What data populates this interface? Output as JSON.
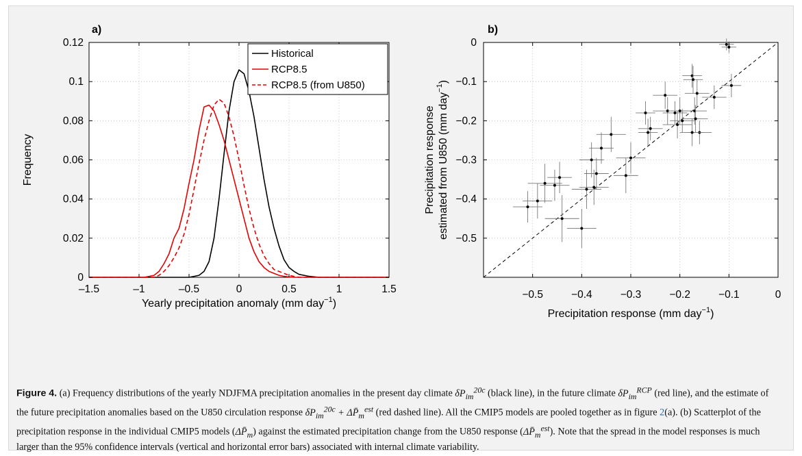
{
  "chart_data": [
    {
      "type": "line",
      "panel_label": "a)",
      "xlabel": "Yearly precipitation anomaly (mm day",
      "xlabel_sup": "−1",
      "xlabel_tail": ")",
      "ylabel": "Frequency",
      "xlim": [
        -1.5,
        1.5
      ],
      "ylim": [
        0,
        0.12
      ],
      "xticks": [
        -1.5,
        -1,
        -0.5,
        0,
        0.5,
        1,
        1.5
      ],
      "xtick_labels": [
        "–1.5",
        "–1",
        "–0.5",
        "0",
        "0.5",
        "1",
        "1.5"
      ],
      "yticks": [
        0,
        0.02,
        0.04,
        0.06,
        0.08,
        0.1,
        0.12
      ],
      "ytick_labels": [
        "0",
        "0.02",
        "0.04",
        "0.06",
        "0.08",
        "0.1",
        "0.12"
      ],
      "grid": true,
      "legend_position": "top-right",
      "series": [
        {
          "name": "Historical",
          "color": "#000000",
          "dash": "solid",
          "x": [
            -1.5,
            -0.5,
            -0.45,
            -0.4,
            -0.35,
            -0.3,
            -0.25,
            -0.2,
            -0.15,
            -0.1,
            -0.05,
            0.0,
            0.05,
            0.1,
            0.15,
            0.2,
            0.25,
            0.3,
            0.35,
            0.4,
            0.45,
            0.5,
            0.55,
            0.6,
            0.7,
            0.8,
            1.5
          ],
          "y": [
            0,
            0,
            0.0005,
            0.001,
            0.003,
            0.008,
            0.02,
            0.04,
            0.063,
            0.085,
            0.1,
            0.106,
            0.104,
            0.095,
            0.082,
            0.066,
            0.05,
            0.036,
            0.025,
            0.016,
            0.009,
            0.005,
            0.003,
            0.0015,
            0.0005,
            0,
            0
          ]
        },
        {
          "name": "RCP8.5",
          "color": "#e60000",
          "dash": "solid",
          "x": [
            -1.5,
            -0.95,
            -0.9,
            -0.85,
            -0.8,
            -0.75,
            -0.7,
            -0.65,
            -0.6,
            -0.55,
            -0.5,
            -0.45,
            -0.4,
            -0.35,
            -0.3,
            -0.25,
            -0.2,
            -0.15,
            -0.1,
            -0.05,
            0.0,
            0.05,
            0.1,
            0.15,
            0.2,
            0.25,
            0.3,
            0.35,
            0.4,
            0.45,
            0.5,
            0.55,
            1.5
          ],
          "y": [
            0,
            0,
            0.0005,
            0.001,
            0.003,
            0.007,
            0.012,
            0.02,
            0.025,
            0.035,
            0.048,
            0.06,
            0.075,
            0.087,
            0.088,
            0.085,
            0.078,
            0.07,
            0.06,
            0.05,
            0.04,
            0.03,
            0.02,
            0.013,
            0.008,
            0.005,
            0.003,
            0.002,
            0.001,
            0.0005,
            0.0002,
            0,
            0
          ]
        },
        {
          "name": "RCP8.5 (from U850)",
          "color": "#e60000",
          "dash": "dashed",
          "x": [
            -1.5,
            -0.85,
            -0.8,
            -0.75,
            -0.7,
            -0.65,
            -0.6,
            -0.55,
            -0.5,
            -0.45,
            -0.4,
            -0.35,
            -0.3,
            -0.25,
            -0.2,
            -0.15,
            -0.1,
            -0.05,
            0.0,
            0.05,
            0.1,
            0.15,
            0.2,
            0.25,
            0.3,
            0.35,
            0.4,
            0.45,
            0.5,
            0.55,
            0.6,
            1.5
          ],
          "y": [
            0,
            0,
            0.001,
            0.003,
            0.006,
            0.01,
            0.015,
            0.022,
            0.032,
            0.045,
            0.058,
            0.07,
            0.08,
            0.088,
            0.091,
            0.089,
            0.082,
            0.072,
            0.06,
            0.047,
            0.035,
            0.025,
            0.017,
            0.011,
            0.007,
            0.004,
            0.003,
            0.002,
            0.001,
            0.0005,
            0,
            0
          ]
        }
      ]
    },
    {
      "type": "scatter",
      "panel_label": "b)",
      "xlabel": "Precipitation response (mm day",
      "xlabel_sup": "−1",
      "xlabel_tail": ")",
      "ylabel_line1": "Precipitation response",
      "ylabel_line2": "estimated from U850 (mm day",
      "ylabel_sup": "−1",
      "ylabel_tail": ")",
      "xlim": [
        -0.6,
        0
      ],
      "ylim": [
        -0.6,
        0
      ],
      "xticks": [
        -0.5,
        -0.4,
        -0.3,
        -0.2,
        -0.1,
        0
      ],
      "xtick_labels": [
        "−0.5",
        "−0.4",
        "−0.3",
        "−0.2",
        "−0.1",
        "0"
      ],
      "yticks": [
        -0.5,
        -0.4,
        -0.3,
        -0.2,
        -0.1,
        0
      ],
      "ytick_labels": [
        "−0.5",
        "−0.4",
        "−0.3",
        "−0.2",
        "−0.1",
        "0"
      ],
      "grid": true,
      "reference_line": "1:1 dashed",
      "points": [
        {
          "x": -0.51,
          "y": -0.42,
          "xerr": 0.03,
          "yerr": 0.04
        },
        {
          "x": -0.49,
          "y": -0.405,
          "xerr": 0.03,
          "yerr": 0.045
        },
        {
          "x": -0.475,
          "y": -0.36,
          "xerr": 0.035,
          "yerr": 0.05
        },
        {
          "x": -0.455,
          "y": -0.365,
          "xerr": 0.03,
          "yerr": 0.04
        },
        {
          "x": -0.445,
          "y": -0.345,
          "xerr": 0.025,
          "yerr": 0.04
        },
        {
          "x": -0.44,
          "y": -0.45,
          "xerr": 0.035,
          "yerr": 0.06
        },
        {
          "x": -0.4,
          "y": -0.475,
          "xerr": 0.03,
          "yerr": 0.05
        },
        {
          "x": -0.39,
          "y": -0.375,
          "xerr": 0.03,
          "yerr": 0.05
        },
        {
          "x": -0.38,
          "y": -0.3,
          "xerr": 0.025,
          "yerr": 0.045
        },
        {
          "x": -0.375,
          "y": -0.37,
          "xerr": 0.03,
          "yerr": 0.045
        },
        {
          "x": -0.37,
          "y": -0.335,
          "xerr": 0.025,
          "yerr": 0.04
        },
        {
          "x": -0.36,
          "y": -0.27,
          "xerr": 0.025,
          "yerr": 0.04
        },
        {
          "x": -0.34,
          "y": -0.235,
          "xerr": 0.03,
          "yerr": 0.045
        },
        {
          "x": -0.3,
          "y": -0.295,
          "xerr": 0.03,
          "yerr": 0.04
        },
        {
          "x": -0.31,
          "y": -0.34,
          "xerr": 0.025,
          "yerr": 0.045
        },
        {
          "x": -0.27,
          "y": -0.18,
          "xerr": 0.02,
          "yerr": 0.03
        },
        {
          "x": -0.265,
          "y": -0.23,
          "xerr": 0.02,
          "yerr": 0.035
        },
        {
          "x": -0.26,
          "y": -0.22,
          "xerr": 0.025,
          "yerr": 0.03
        },
        {
          "x": -0.23,
          "y": -0.135,
          "xerr": 0.025,
          "yerr": 0.035
        },
        {
          "x": -0.225,
          "y": -0.175,
          "xerr": 0.03,
          "yerr": 0.035
        },
        {
          "x": -0.21,
          "y": -0.18,
          "xerr": 0.025,
          "yerr": 0.03
        },
        {
          "x": -0.205,
          "y": -0.21,
          "xerr": 0.03,
          "yerr": 0.035
        },
        {
          "x": -0.2,
          "y": -0.175,
          "xerr": 0.025,
          "yerr": 0.035
        },
        {
          "x": -0.195,
          "y": -0.2,
          "xerr": 0.025,
          "yerr": 0.03
        },
        {
          "x": -0.175,
          "y": -0.085,
          "xerr": 0.02,
          "yerr": 0.03
        },
        {
          "x": -0.173,
          "y": -0.095,
          "xerr": 0.02,
          "yerr": 0.035
        },
        {
          "x": -0.17,
          "y": -0.175,
          "xerr": 0.025,
          "yerr": 0.035
        },
        {
          "x": -0.168,
          "y": -0.195,
          "xerr": 0.025,
          "yerr": 0.035
        },
        {
          "x": -0.165,
          "y": -0.13,
          "xerr": 0.025,
          "yerr": 0.035
        },
        {
          "x": -0.16,
          "y": -0.23,
          "xerr": 0.025,
          "yerr": 0.03
        },
        {
          "x": -0.175,
          "y": -0.23,
          "xerr": 0.025,
          "yerr": 0.035
        },
        {
          "x": -0.13,
          "y": -0.14,
          "xerr": 0.025,
          "yerr": 0.03
        },
        {
          "x": -0.105,
          "y": -0.005,
          "xerr": 0.015,
          "yerr": 0.015
        },
        {
          "x": -0.1,
          "y": -0.012,
          "xerr": 0.015,
          "yerr": 0.015
        },
        {
          "x": -0.095,
          "y": -0.11,
          "xerr": 0.02,
          "yerr": 0.03
        }
      ]
    }
  ],
  "caption": {
    "title": "Figure 4.",
    "part1": " (a) Frequency distributions of the yearly NDJFMA precipitation anomalies in the present day climate ",
    "sym_hist_base": "δP",
    "sym_hist_sub": "im",
    "sym_hist_sup": "20c",
    "part2": " (black line), in the future climate ",
    "sym_rcp_base": "δP",
    "sym_rcp_sub": "im",
    "sym_rcp_sup": "RCP",
    "part3": " (red line), and the estimate of the future precipitation anomalies based on the U850 circulation response ",
    "sym_est_base": "δP",
    "sym_est_sub": "im",
    "sym_est_sup": "20c",
    "sym_est_plus": " + ΔP̄",
    "sym_est_sub2": "m",
    "sym_est_sup2": "est",
    "part4": " (red dashed line). All the CMIP5 models are pooled together as in figure ",
    "fig_ref": "2",
    "part5": "(a). (b) Scatterplot of the precipitation response in the individual CMIP5 models (",
    "sym_model": "ΔP̄",
    "sym_model_sub": "m",
    "part6": ") against the estimated precipitation change from the U850 response (",
    "sym_estb": "ΔP̄",
    "sym_estb_sub": "m",
    "sym_estb_sup": "est",
    "part7": "). Note that the spread in the model responses is much larger than the 95% confidence intervals (vertical and horizontal error bars) associated with internal climate variability."
  }
}
